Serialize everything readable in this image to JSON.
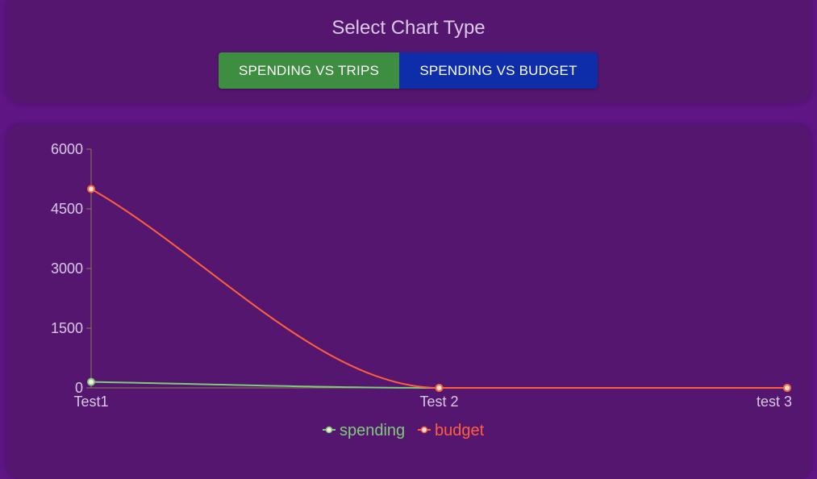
{
  "header": {
    "title": "Select Chart Type",
    "buttons": [
      {
        "label": "SPENDING VS TRIPS",
        "color": "#3e8e41"
      },
      {
        "label": "SPENDING VS BUDGET",
        "color": "#0d2ea8"
      }
    ]
  },
  "colors": {
    "background": "#5f1584",
    "panel": "#55166f",
    "text": "#d9c8e6",
    "axis": "#8a7a5a"
  },
  "chart_data": {
    "type": "line",
    "categories": [
      "Test1",
      "Test 2",
      "test 3"
    ],
    "series": [
      {
        "name": "spending",
        "values": [
          150,
          0,
          0
        ],
        "color": "#7ecb7a"
      },
      {
        "name": "budget",
        "values": [
          5000,
          0,
          0
        ],
        "color": "#ff5f3c"
      }
    ],
    "ylim": [
      0,
      6000
    ],
    "yticks": [
      "0",
      "1500",
      "3000",
      "4500",
      "6000"
    ],
    "legend_position": "bottom-center",
    "grid": false
  }
}
